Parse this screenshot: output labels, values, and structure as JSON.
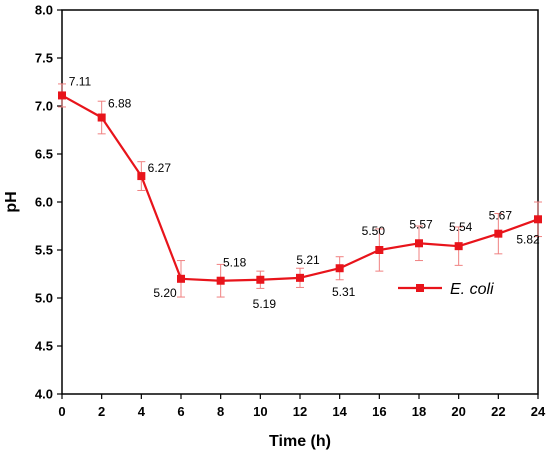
{
  "chart_data": {
    "type": "line",
    "xlabel": "Time (h)",
    "ylabel": "pH",
    "xlim": [
      0,
      24
    ],
    "ylim": [
      4.0,
      8.0
    ],
    "x_ticks": [
      "0",
      "2",
      "4",
      "6",
      "8",
      "10",
      "12",
      "14",
      "16",
      "18",
      "20",
      "22",
      "24"
    ],
    "y_ticks": [
      "4.0",
      "4.5",
      "5.0",
      "5.5",
      "6.0",
      "6.5",
      "7.0",
      "7.5",
      "8.0"
    ],
    "grid": false,
    "legend_position": "middle-right",
    "series": [
      {
        "name": "E. coli",
        "color": "#e8141b",
        "errorbar_color": "#f08080",
        "marker": "square",
        "x": [
          0,
          2,
          4,
          6,
          8,
          10,
          12,
          14,
          16,
          18,
          20,
          22,
          24
        ],
        "y": [
          7.11,
          6.88,
          6.27,
          5.2,
          5.18,
          5.19,
          5.21,
          5.31,
          5.5,
          5.57,
          5.54,
          5.67,
          5.82
        ],
        "error": [
          0.12,
          0.17,
          0.15,
          0.19,
          0.17,
          0.09,
          0.1,
          0.12,
          0.22,
          0.18,
          0.2,
          0.21,
          0.18
        ],
        "labels": [
          "7.11",
          "6.88",
          "6.27",
          "5.20",
          "5.18",
          "5.19",
          "5.21",
          "5.31",
          "5.50",
          "5.57",
          "5.54",
          "5.67",
          "5.82"
        ]
      }
    ]
  }
}
